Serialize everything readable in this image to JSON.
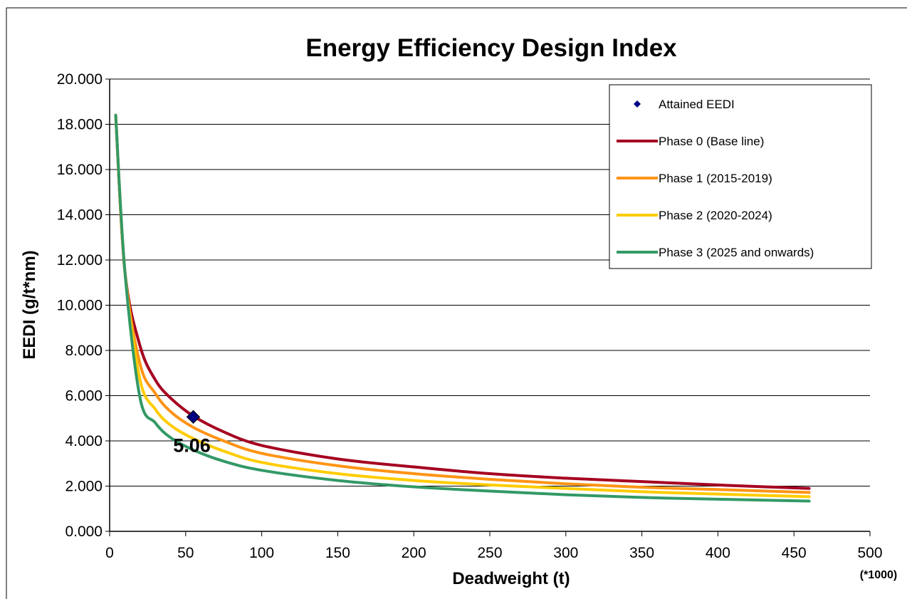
{
  "chart_data": {
    "type": "line",
    "title": "Energy Efficiency Design Index",
    "xlabel": "Deadweight (t)",
    "xunit_note": "(*1000)",
    "ylabel": "EEDI (g/t*nm)",
    "xlim": [
      0,
      500
    ],
    "ylim": [
      0,
      20
    ],
    "x_ticks": [
      0,
      50,
      100,
      150,
      200,
      250,
      300,
      350,
      400,
      450,
      500
    ],
    "x_tick_labels": [
      "0",
      "50",
      "100",
      "150",
      "200",
      "250",
      "300",
      "350",
      "400",
      "450",
      "500"
    ],
    "y_ticks": [
      0,
      2,
      4,
      6,
      8,
      10,
      12,
      14,
      16,
      18,
      20
    ],
    "y_tick_labels": [
      "0.000",
      "2.000",
      "4.000",
      "6.000",
      "8.000",
      "10.000",
      "12.000",
      "14.000",
      "16.000",
      "18.000",
      "20.000"
    ],
    "grid": "horizontal",
    "legend_position": "top-right",
    "series": [
      {
        "name": "Phase 0 (Base line)",
        "color": "#a50021",
        "x": [
          4,
          10,
          20,
          30,
          40,
          55,
          75,
          100,
          150,
          200,
          250,
          300,
          350,
          400,
          460
        ],
        "y": [
          18.4,
          11.5,
          8.2,
          6.7,
          5.9,
          5.1,
          4.4,
          3.8,
          3.2,
          2.85,
          2.55,
          2.35,
          2.2,
          2.05,
          1.9
        ]
      },
      {
        "name": "Phase 1 (2015-2019)",
        "color": "#ff9416",
        "x": [
          4,
          10,
          20,
          30,
          40,
          55,
          75,
          100,
          150,
          200,
          250,
          300,
          350,
          400,
          460
        ],
        "y": [
          18.4,
          11.5,
          7.4,
          6.1,
          5.3,
          4.6,
          4.0,
          3.45,
          2.9,
          2.55,
          2.3,
          2.1,
          1.95,
          1.85,
          1.72
        ]
      },
      {
        "name": "Phase 2 (2020-2024)",
        "color": "#ffcc00",
        "x": [
          4,
          10,
          20,
          30,
          40,
          55,
          75,
          100,
          150,
          200,
          250,
          300,
          350,
          400,
          460
        ],
        "y": [
          18.4,
          11.5,
          6.7,
          5.4,
          4.7,
          4.1,
          3.55,
          3.05,
          2.55,
          2.25,
          2.05,
          1.9,
          1.75,
          1.65,
          1.53
        ]
      },
      {
        "name": "Phase 3 (2025 and onwards)",
        "color": "#339966",
        "x": [
          4,
          10,
          20,
          30,
          40,
          55,
          75,
          100,
          150,
          200,
          250,
          300,
          350,
          400,
          460
        ],
        "y": [
          18.4,
          11.5,
          5.9,
          4.8,
          4.15,
          3.6,
          3.1,
          2.7,
          2.25,
          1.97,
          1.78,
          1.62,
          1.5,
          1.42,
          1.34
        ]
      }
    ],
    "points": [
      {
        "name": "Attained EEDI",
        "color": "#000080",
        "x": 55,
        "y": 5.06,
        "label": "5.06"
      }
    ]
  }
}
